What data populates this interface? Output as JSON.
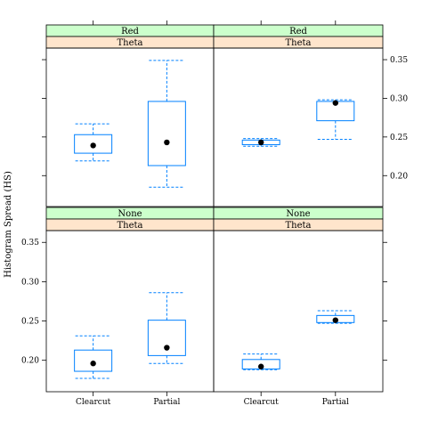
{
  "chart_data": {
    "type": "box",
    "ylabel": "Histogram Spread (HS)",
    "ylim": [
      0.16,
      0.365
    ],
    "yticks": [
      0.2,
      0.25,
      0.3,
      0.35
    ],
    "ytick_labels": [
      "0.20",
      "0.25",
      "0.30",
      "0.35"
    ],
    "categories": [
      "Clearcut",
      "Partial"
    ],
    "colors": {
      "strip_top": "#ccffcc",
      "strip_bottom": "#ffe5cc",
      "box": "#0080ff",
      "median": "#000000"
    },
    "panels": [
      {
        "strip_top": "Red",
        "strip_bottom": "Theta",
        "boxes": [
          {
            "category": "Clearcut",
            "whisker_low": 0.219,
            "q1": 0.229,
            "median": 0.239,
            "q3": 0.253,
            "whisker_high": 0.267
          },
          {
            "category": "Partial",
            "whisker_low": 0.185,
            "q1": 0.213,
            "median": 0.243,
            "q3": 0.296,
            "whisker_high": 0.349
          }
        ]
      },
      {
        "strip_top": "Red",
        "strip_bottom": "Theta",
        "boxes": [
          {
            "category": "Clearcut",
            "whisker_low": 0.238,
            "q1": 0.24,
            "median": 0.243,
            "q3": 0.246,
            "whisker_high": 0.248
          },
          {
            "category": "Partial",
            "whisker_low": 0.247,
            "q1": 0.271,
            "median": 0.294,
            "q3": 0.296,
            "whisker_high": 0.298
          }
        ]
      },
      {
        "strip_top": "None",
        "strip_bottom": "Theta",
        "boxes": [
          {
            "category": "Clearcut",
            "whisker_low": 0.177,
            "q1": 0.186,
            "median": 0.196,
            "q3": 0.213,
            "whisker_high": 0.231
          },
          {
            "category": "Partial",
            "whisker_low": 0.196,
            "q1": 0.206,
            "median": 0.216,
            "q3": 0.251,
            "whisker_high": 0.286
          }
        ]
      },
      {
        "strip_top": "None",
        "strip_bottom": "Theta",
        "boxes": [
          {
            "category": "Clearcut",
            "whisker_low": 0.188,
            "q1": 0.189,
            "median": 0.192,
            "q3": 0.201,
            "whisker_high": 0.208
          },
          {
            "category": "Partial",
            "whisker_low": 0.247,
            "q1": 0.248,
            "median": 0.251,
            "q3": 0.257,
            "whisker_high": 0.263
          }
        ]
      }
    ]
  }
}
